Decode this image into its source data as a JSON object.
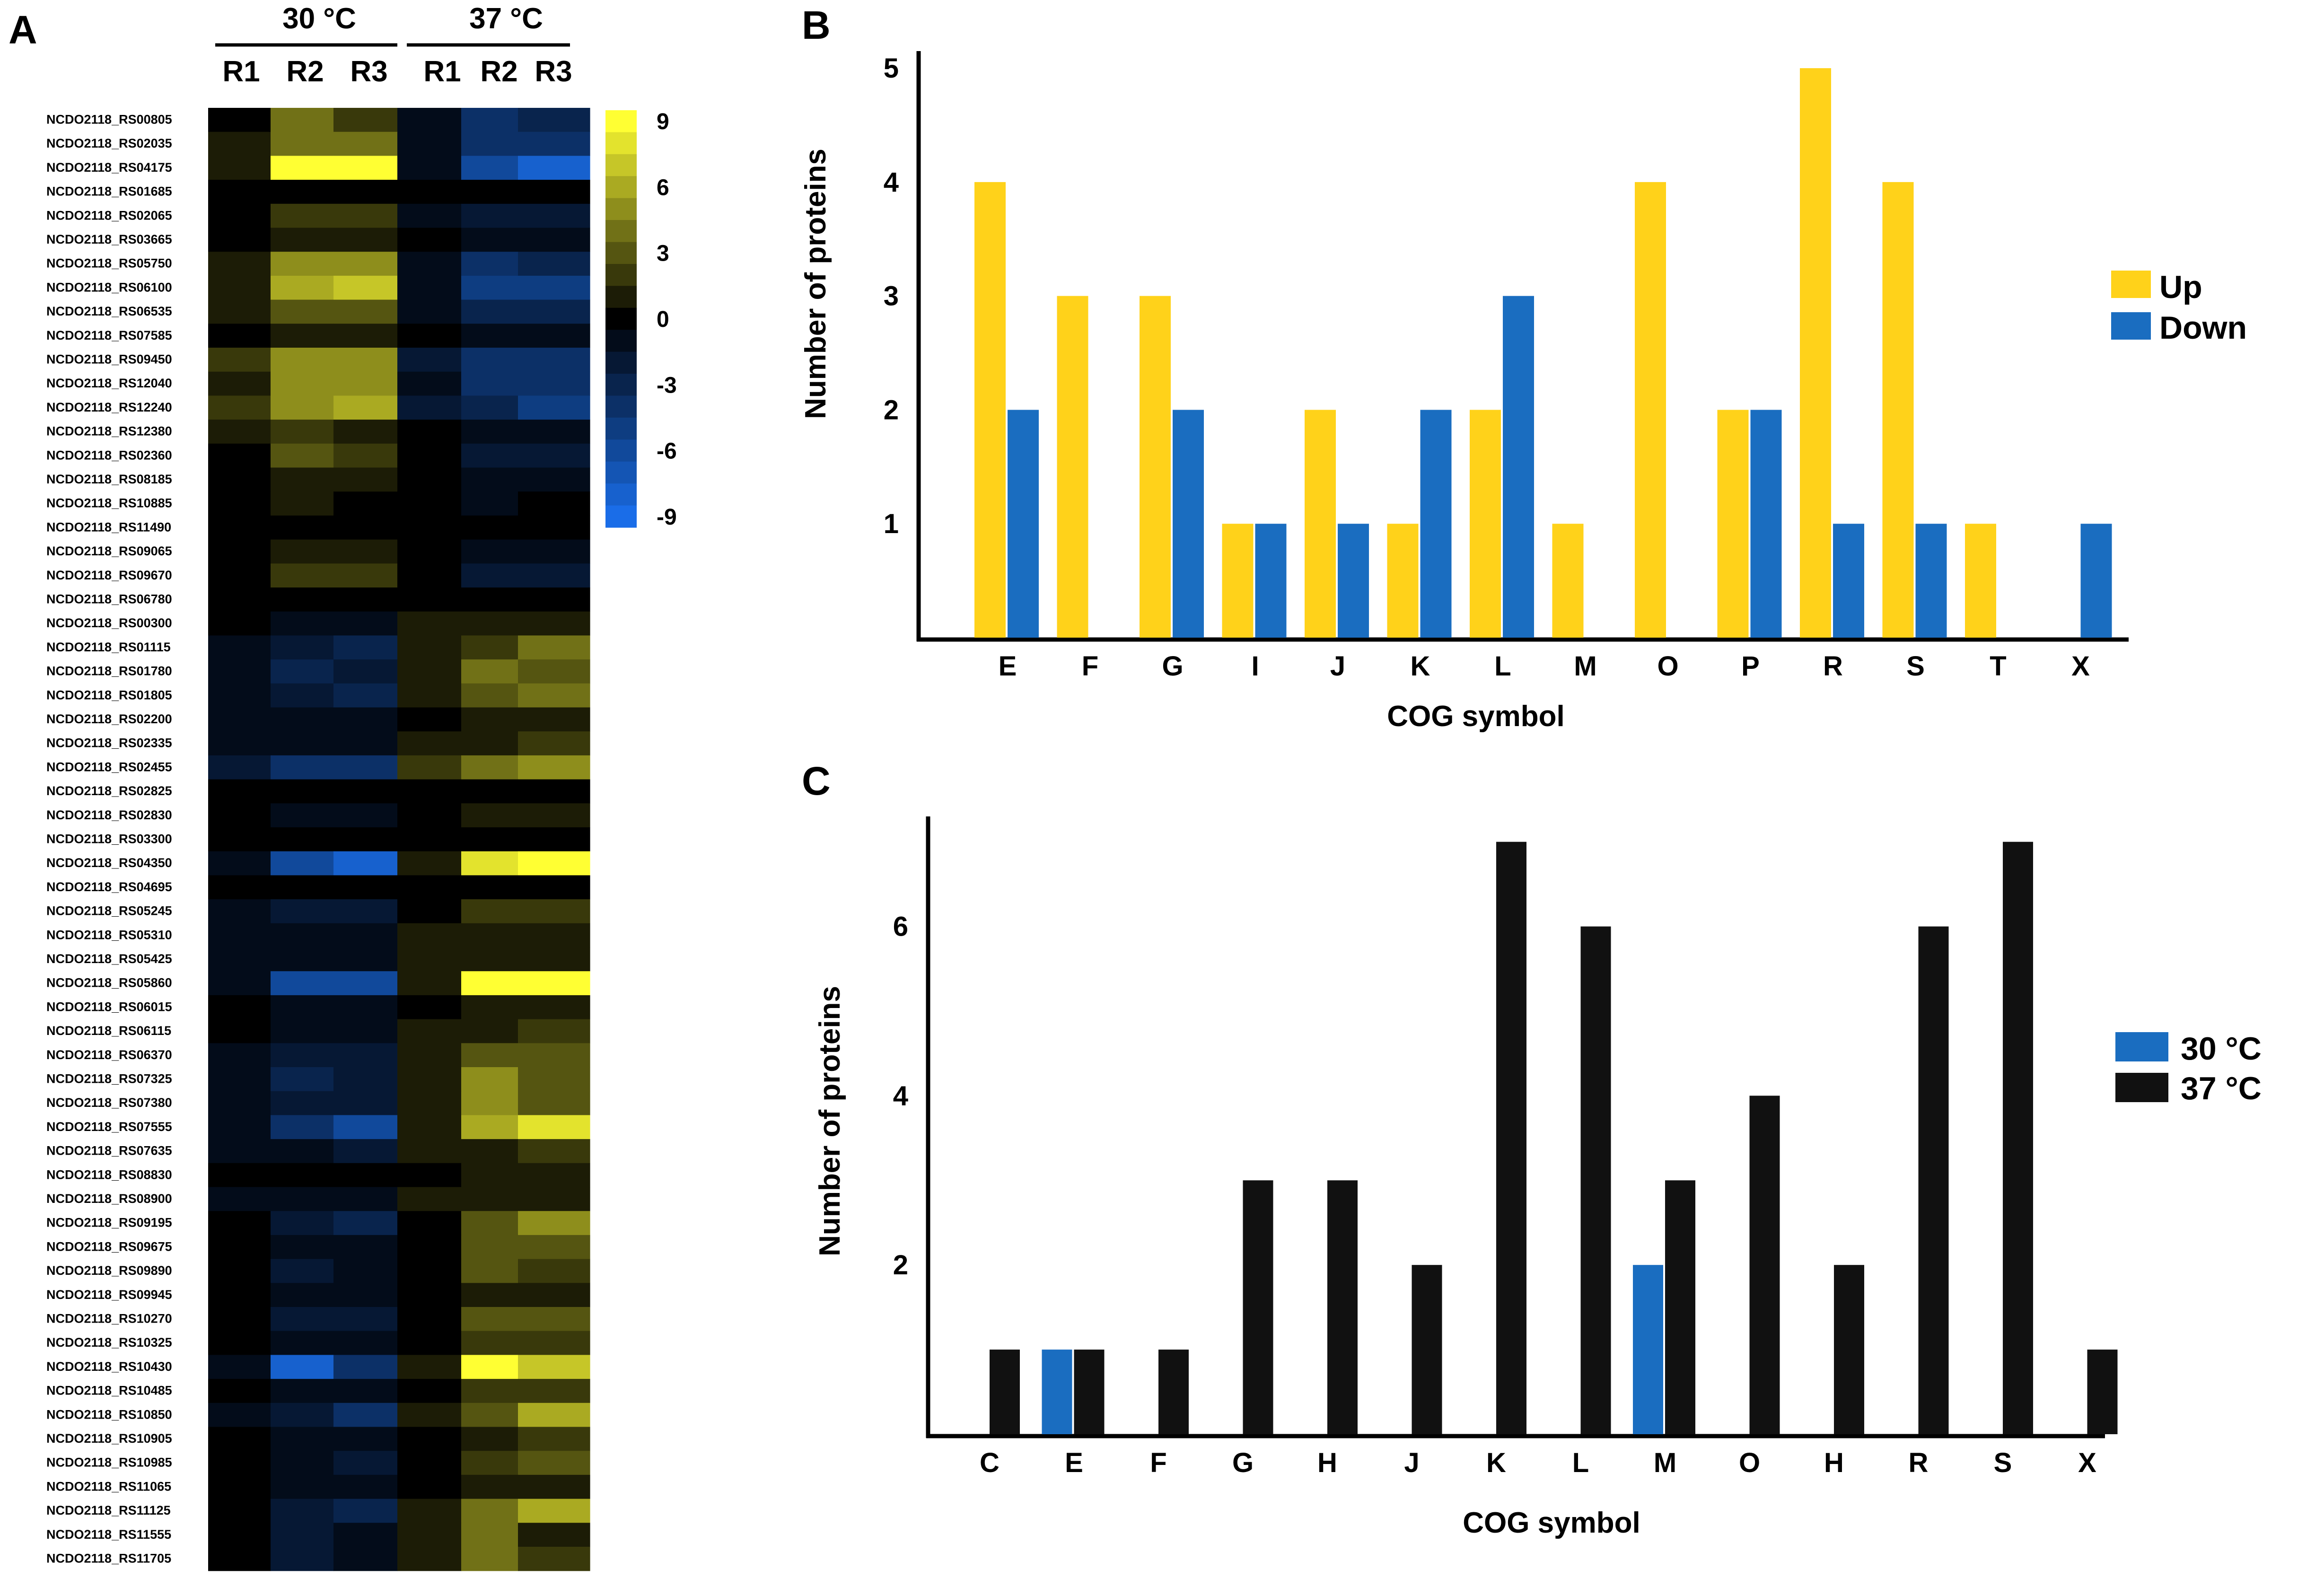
{
  "panels": {
    "a": "A",
    "b": "B",
    "c": "C"
  },
  "colors": {
    "up": "#FFD21A",
    "down": "#1A6DC0",
    "black": "#111111",
    "heat_high": "#FFFF33",
    "heat_mid": "#000000",
    "heat_low": "#1A6DE8"
  },
  "heatmap": {
    "groups": [
      "30 °C",
      "37 °C"
    ],
    "replicates": [
      "R1",
      "R2",
      "R3",
      "R1",
      "R2",
      "R3"
    ],
    "scale_labels": [
      "9",
      "6",
      "3",
      "0",
      "-3",
      "-6",
      "-9"
    ],
    "genes": [
      {
        "id": "NCDO2118_RS00805",
        "values": [
          0,
          4,
          2,
          -1,
          -4,
          -3
        ]
      },
      {
        "id": "NCDO2118_RS02035",
        "values": [
          1,
          4,
          4,
          -1,
          -4,
          -4
        ]
      },
      {
        "id": "NCDO2118_RS04175",
        "values": [
          1,
          9,
          9,
          -1,
          -6,
          -8
        ]
      },
      {
        "id": "NCDO2118_RS01685",
        "values": [
          0,
          0,
          0,
          0,
          0,
          0
        ]
      },
      {
        "id": "NCDO2118_RS02065",
        "values": [
          0,
          2,
          2,
          -1,
          -2,
          -2
        ]
      },
      {
        "id": "NCDO2118_RS03665",
        "values": [
          0,
          1,
          1,
          0,
          -1,
          -1
        ]
      },
      {
        "id": "NCDO2118_RS05750",
        "values": [
          1,
          5,
          5,
          -1,
          -4,
          -3
        ]
      },
      {
        "id": "NCDO2118_RS06100",
        "values": [
          1,
          6,
          7,
          -1,
          -5,
          -5
        ]
      },
      {
        "id": "NCDO2118_RS06535",
        "values": [
          1,
          3,
          3,
          -1,
          -3,
          -3
        ]
      },
      {
        "id": "NCDO2118_RS07585",
        "values": [
          0,
          1,
          1,
          0,
          -1,
          -1
        ]
      },
      {
        "id": "NCDO2118_RS09450",
        "values": [
          2,
          5,
          5,
          -2,
          -4,
          -4
        ]
      },
      {
        "id": "NCDO2118_RS12040",
        "values": [
          1,
          5,
          5,
          -1,
          -4,
          -4
        ]
      },
      {
        "id": "NCDO2118_RS12240",
        "values": [
          2,
          5,
          6,
          -2,
          -3,
          -5
        ]
      },
      {
        "id": "NCDO2118_RS12380",
        "values": [
          1,
          2,
          1,
          0,
          -1,
          -1
        ]
      },
      {
        "id": "NCDO2118_RS02360",
        "values": [
          0,
          3,
          2,
          0,
          -2,
          -2
        ]
      },
      {
        "id": "NCDO2118_RS08185",
        "values": [
          0,
          1,
          1,
          0,
          -1,
          -1
        ]
      },
      {
        "id": "NCDO2118_RS10885",
        "values": [
          0,
          1,
          0,
          0,
          -1,
          0
        ]
      },
      {
        "id": "NCDO2118_RS11490",
        "values": [
          0,
          0,
          0,
          0,
          0,
          0
        ]
      },
      {
        "id": "NCDO2118_RS09065",
        "values": [
          0,
          1,
          1,
          0,
          -1,
          -1
        ]
      },
      {
        "id": "NCDO2118_RS09670",
        "values": [
          0,
          2,
          2,
          0,
          -2,
          -2
        ]
      },
      {
        "id": "NCDO2118_RS06780",
        "values": [
          0,
          0,
          0,
          0,
          0,
          0
        ]
      },
      {
        "id": "NCDO2118_RS00300",
        "values": [
          0,
          -1,
          -1,
          1,
          1,
          1
        ]
      },
      {
        "id": "NCDO2118_RS01115",
        "values": [
          -1,
          -2,
          -3,
          1,
          2,
          4
        ]
      },
      {
        "id": "NCDO2118_RS01780",
        "values": [
          -1,
          -3,
          -2,
          1,
          4,
          3
        ]
      },
      {
        "id": "NCDO2118_RS01805",
        "values": [
          -1,
          -2,
          -3,
          1,
          3,
          4
        ]
      },
      {
        "id": "NCDO2118_RS02200",
        "values": [
          -1,
          -1,
          -1,
          0,
          1,
          1
        ]
      },
      {
        "id": "NCDO2118_RS02335",
        "values": [
          -1,
          -1,
          -1,
          1,
          1,
          2
        ]
      },
      {
        "id": "NCDO2118_RS02455",
        "values": [
          -2,
          -4,
          -4,
          2,
          4,
          5
        ]
      },
      {
        "id": "NCDO2118_RS02825",
        "values": [
          0,
          0,
          0,
          0,
          0,
          0
        ]
      },
      {
        "id": "NCDO2118_RS02830",
        "values": [
          0,
          -1,
          -1,
          0,
          1,
          1
        ]
      },
      {
        "id": "NCDO2118_RS03300",
        "values": [
          0,
          0,
          0,
          0,
          0,
          0
        ]
      },
      {
        "id": "NCDO2118_RS04350",
        "values": [
          -1,
          -6,
          -8,
          1,
          8,
          9
        ]
      },
      {
        "id": "NCDO2118_RS04695",
        "values": [
          0,
          0,
          0,
          0,
          0,
          0
        ]
      },
      {
        "id": "NCDO2118_RS05245",
        "values": [
          -1,
          -2,
          -2,
          0,
          2,
          2
        ]
      },
      {
        "id": "NCDO2118_RS05310",
        "values": [
          -1,
          -1,
          -1,
          1,
          1,
          1
        ]
      },
      {
        "id": "NCDO2118_RS05425",
        "values": [
          -1,
          -1,
          -1,
          1,
          1,
          1
        ]
      },
      {
        "id": "NCDO2118_RS05860",
        "values": [
          -1,
          -6,
          -6,
          1,
          9,
          9
        ]
      },
      {
        "id": "NCDO2118_RS06015",
        "values": [
          0,
          -1,
          -1,
          0,
          1,
          1
        ]
      },
      {
        "id": "NCDO2118_RS06115",
        "values": [
          0,
          -1,
          -1,
          1,
          1,
          2
        ]
      },
      {
        "id": "NCDO2118_RS06370",
        "values": [
          -1,
          -2,
          -2,
          1,
          3,
          3
        ]
      },
      {
        "id": "NCDO2118_RS07325",
        "values": [
          -1,
          -3,
          -2,
          1,
          5,
          3
        ]
      },
      {
        "id": "NCDO2118_RS07380",
        "values": [
          -1,
          -2,
          -2,
          1,
          5,
          3
        ]
      },
      {
        "id": "NCDO2118_RS07555",
        "values": [
          -1,
          -4,
          -6,
          1,
          6,
          8
        ]
      },
      {
        "id": "NCDO2118_RS07635",
        "values": [
          -1,
          -1,
          -2,
          1,
          1,
          2
        ]
      },
      {
        "id": "NCDO2118_RS08830",
        "values": [
          0,
          0,
          0,
          0,
          1,
          1
        ]
      },
      {
        "id": "NCDO2118_RS08900",
        "values": [
          -1,
          -1,
          -1,
          1,
          1,
          1
        ]
      },
      {
        "id": "NCDO2118_RS09195",
        "values": [
          0,
          -2,
          -3,
          0,
          3,
          5
        ]
      },
      {
        "id": "NCDO2118_RS09675",
        "values": [
          0,
          -1,
          -1,
          0,
          3,
          3
        ]
      },
      {
        "id": "NCDO2118_RS09890",
        "values": [
          0,
          -2,
          -1,
          0,
          3,
          2
        ]
      },
      {
        "id": "NCDO2118_RS09945",
        "values": [
          0,
          -1,
          -1,
          0,
          1,
          1
        ]
      },
      {
        "id": "NCDO2118_RS10270",
        "values": [
          0,
          -2,
          -2,
          0,
          3,
          3
        ]
      },
      {
        "id": "NCDO2118_RS10325",
        "values": [
          0,
          -1,
          -1,
          0,
          2,
          2
        ]
      },
      {
        "id": "NCDO2118_RS10430",
        "values": [
          -1,
          -8,
          -4,
          1,
          9,
          7
        ]
      },
      {
        "id": "NCDO2118_RS10485",
        "values": [
          0,
          -1,
          -1,
          0,
          2,
          2
        ]
      },
      {
        "id": "NCDO2118_RS10850",
        "values": [
          -1,
          -2,
          -4,
          1,
          3,
          6
        ]
      },
      {
        "id": "NCDO2118_RS10905",
        "values": [
          0,
          -1,
          -1,
          0,
          1,
          2
        ]
      },
      {
        "id": "NCDO2118_RS10985",
        "values": [
          0,
          -1,
          -2,
          0,
          2,
          3
        ]
      },
      {
        "id": "NCDO2118_RS11065",
        "values": [
          0,
          -1,
          -1,
          0,
          1,
          1
        ]
      },
      {
        "id": "NCDO2118_RS11125",
        "values": [
          0,
          -2,
          -3,
          1,
          4,
          6
        ]
      },
      {
        "id": "NCDO2118_RS11555",
        "values": [
          0,
          -2,
          -1,
          1,
          4,
          1
        ]
      },
      {
        "id": "NCDO2118_RS11705",
        "values": [
          0,
          -2,
          -1,
          1,
          4,
          2
        ]
      }
    ]
  },
  "chart_data": [
    {
      "type": "bar",
      "panel": "B",
      "title": "",
      "xlabel": "COG symbol",
      "ylabel": "Number of proteins",
      "categories": [
        "E",
        "F",
        "G",
        "I",
        "J",
        "K",
        "L",
        "M",
        "O",
        "P",
        "R",
        "S",
        "T",
        "X"
      ],
      "series": [
        {
          "name": "Up",
          "color": "#FFD21A",
          "values": [
            4,
            3,
            3,
            1,
            2,
            1,
            2,
            1,
            4,
            2,
            5,
            4,
            1,
            0
          ]
        },
        {
          "name": "Down",
          "color": "#1A6DC0",
          "values": [
            2,
            0,
            2,
            1,
            1,
            2,
            3,
            0,
            0,
            2,
            1,
            1,
            0,
            1
          ]
        }
      ],
      "yticks": [
        1,
        2,
        3,
        4,
        5
      ],
      "ylim": [
        0,
        5.15
      ],
      "legend": "right"
    },
    {
      "type": "bar",
      "panel": "C",
      "title": "",
      "xlabel": "COG symbol",
      "ylabel": "Number of proteins",
      "categories": [
        "C",
        "E",
        "F",
        "G",
        "H",
        "J",
        "K",
        "L",
        "M",
        "O",
        "H",
        "R",
        "S",
        "X"
      ],
      "series": [
        {
          "name": "30 °C",
          "color": "#1A6DC0",
          "values": [
            0,
            1,
            0,
            0,
            0,
            0,
            0,
            0,
            2,
            0,
            0,
            0,
            0,
            0
          ]
        },
        {
          "name": "37 °C",
          "color": "#111111",
          "values": [
            1,
            1,
            1,
            3,
            3,
            2,
            7,
            6,
            3,
            4,
            2,
            6,
            7,
            1
          ]
        }
      ],
      "yticks": [
        2,
        4,
        6
      ],
      "ylim": [
        0,
        7.3
      ],
      "legend": "right"
    }
  ]
}
